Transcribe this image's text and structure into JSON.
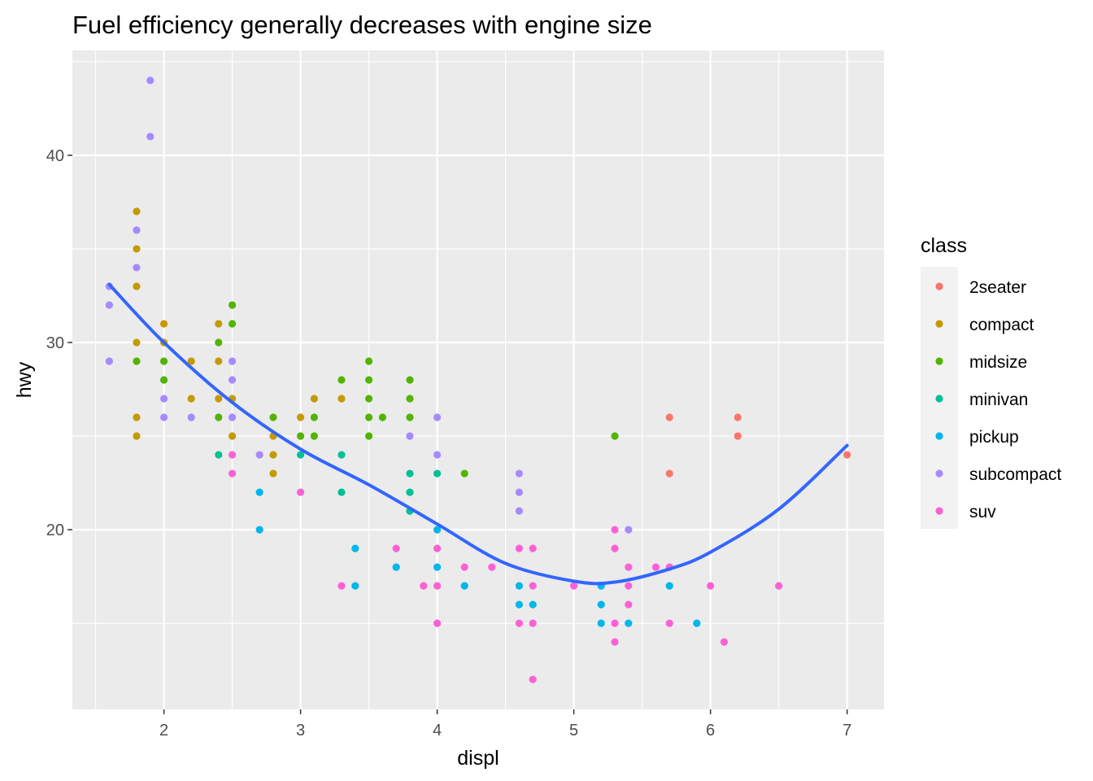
{
  "chart_data": {
    "type": "scatter",
    "title": "Fuel efficiency generally decreases with engine size",
    "xlabel": "displ",
    "ylabel": "hwy",
    "xlim": [
      1.33,
      7.27
    ],
    "ylim": [
      10.4,
      45.6
    ],
    "x_ticks": [
      "2",
      "3",
      "4",
      "5",
      "6",
      "7"
    ],
    "y_ticks": [
      "20",
      "30",
      "40"
    ],
    "grid": true,
    "legend": {
      "title": "class",
      "position": "right"
    },
    "series": [
      {
        "name": "2seater",
        "color": "#F8766D",
        "points": [
          [
            5.7,
            26
          ],
          [
            5.7,
            23
          ],
          [
            6.2,
            26
          ],
          [
            6.2,
            25
          ],
          [
            7.0,
            24
          ]
        ]
      },
      {
        "name": "compact",
        "color": "#C49A00",
        "points": [
          [
            1.8,
            37
          ],
          [
            1.8,
            35
          ],
          [
            1.8,
            33
          ],
          [
            1.8,
            30
          ],
          [
            1.8,
            26
          ],
          [
            1.8,
            25
          ],
          [
            2.0,
            31
          ],
          [
            2.0,
            30
          ],
          [
            2.2,
            29
          ],
          [
            2.2,
            27
          ],
          [
            2.4,
            31
          ],
          [
            2.4,
            29
          ],
          [
            2.4,
            27
          ],
          [
            2.5,
            27
          ],
          [
            2.5,
            25
          ],
          [
            2.8,
            25
          ],
          [
            2.8,
            24
          ],
          [
            2.8,
            23
          ],
          [
            3.0,
            26
          ],
          [
            3.1,
            27
          ],
          [
            3.3,
            27
          ]
        ]
      },
      {
        "name": "midsize",
        "color": "#53B400",
        "points": [
          [
            1.8,
            29
          ],
          [
            2.0,
            29
          ],
          [
            2.0,
            28
          ],
          [
            2.4,
            30
          ],
          [
            2.4,
            26
          ],
          [
            2.5,
            32
          ],
          [
            2.5,
            31
          ],
          [
            2.8,
            26
          ],
          [
            3.0,
            25
          ],
          [
            3.1,
            26
          ],
          [
            3.1,
            25
          ],
          [
            3.3,
            28
          ],
          [
            3.5,
            29
          ],
          [
            3.5,
            28
          ],
          [
            3.5,
            27
          ],
          [
            3.5,
            26
          ],
          [
            3.5,
            25
          ],
          [
            3.6,
            26
          ],
          [
            3.8,
            28
          ],
          [
            3.8,
            27
          ],
          [
            3.8,
            26
          ],
          [
            4.2,
            23
          ],
          [
            5.3,
            25
          ]
        ]
      },
      {
        "name": "minivan",
        "color": "#00C094",
        "points": [
          [
            2.4,
            24
          ],
          [
            3.0,
            24
          ],
          [
            3.3,
            24
          ],
          [
            3.3,
            22
          ],
          [
            3.8,
            23
          ],
          [
            3.8,
            22
          ],
          [
            3.8,
            21
          ],
          [
            4.0,
            23
          ]
        ]
      },
      {
        "name": "pickup",
        "color": "#00B6EB",
        "points": [
          [
            2.7,
            22
          ],
          [
            2.7,
            20
          ],
          [
            3.4,
            19
          ],
          [
            3.4,
            17
          ],
          [
            3.7,
            18
          ],
          [
            4.0,
            20
          ],
          [
            4.0,
            18
          ],
          [
            4.2,
            17
          ],
          [
            4.6,
            17
          ],
          [
            4.6,
            16
          ],
          [
            4.7,
            16
          ],
          [
            5.2,
            17
          ],
          [
            5.2,
            16
          ],
          [
            5.2,
            15
          ],
          [
            5.4,
            15
          ],
          [
            5.7,
            17
          ],
          [
            5.9,
            15
          ]
        ]
      },
      {
        "name": "subcompact",
        "color": "#A58AFF",
        "points": [
          [
            1.6,
            33
          ],
          [
            1.6,
            32
          ],
          [
            1.6,
            29
          ],
          [
            1.8,
            36
          ],
          [
            1.8,
            34
          ],
          [
            1.9,
            44
          ],
          [
            1.9,
            41
          ],
          [
            2.0,
            27
          ],
          [
            2.0,
            26
          ],
          [
            2.2,
            26
          ],
          [
            2.5,
            29
          ],
          [
            2.5,
            28
          ],
          [
            2.5,
            26
          ],
          [
            2.7,
            24
          ],
          [
            3.8,
            25
          ],
          [
            4.0,
            26
          ],
          [
            4.0,
            24
          ],
          [
            4.6,
            23
          ],
          [
            4.6,
            22
          ],
          [
            4.6,
            21
          ],
          [
            5.4,
            20
          ]
        ]
      },
      {
        "name": "suv",
        "color": "#FB61D7",
        "points": [
          [
            2.5,
            24
          ],
          [
            2.5,
            23
          ],
          [
            3.0,
            22
          ],
          [
            3.3,
            17
          ],
          [
            3.7,
            19
          ],
          [
            3.9,
            17
          ],
          [
            4.0,
            19
          ],
          [
            4.0,
            17
          ],
          [
            4.0,
            15
          ],
          [
            4.2,
            18
          ],
          [
            4.4,
            18
          ],
          [
            4.6,
            19
          ],
          [
            4.6,
            15
          ],
          [
            4.7,
            19
          ],
          [
            4.7,
            17
          ],
          [
            4.7,
            15
          ],
          [
            4.7,
            12
          ],
          [
            5.0,
            17
          ],
          [
            5.3,
            20
          ],
          [
            5.3,
            19
          ],
          [
            5.3,
            15
          ],
          [
            5.3,
            14
          ],
          [
            5.4,
            18
          ],
          [
            5.4,
            17
          ],
          [
            5.4,
            16
          ],
          [
            5.6,
            18
          ],
          [
            5.7,
            18
          ],
          [
            5.7,
            15
          ],
          [
            6.0,
            17
          ],
          [
            6.1,
            14
          ],
          [
            6.5,
            17
          ]
        ]
      }
    ],
    "smooth": {
      "color": "#3366FF",
      "points": [
        [
          1.6,
          33.1
        ],
        [
          2.0,
          30.0
        ],
        [
          2.5,
          26.8
        ],
        [
          3.0,
          24.3
        ],
        [
          3.5,
          22.4
        ],
        [
          4.0,
          20.3
        ],
        [
          4.5,
          18.2
        ],
        [
          5.0,
          17.25
        ],
        [
          5.3,
          17.2
        ],
        [
          5.7,
          17.9
        ],
        [
          6.0,
          18.8
        ],
        [
          6.5,
          21.1
        ],
        [
          7.0,
          24.5
        ]
      ]
    }
  }
}
